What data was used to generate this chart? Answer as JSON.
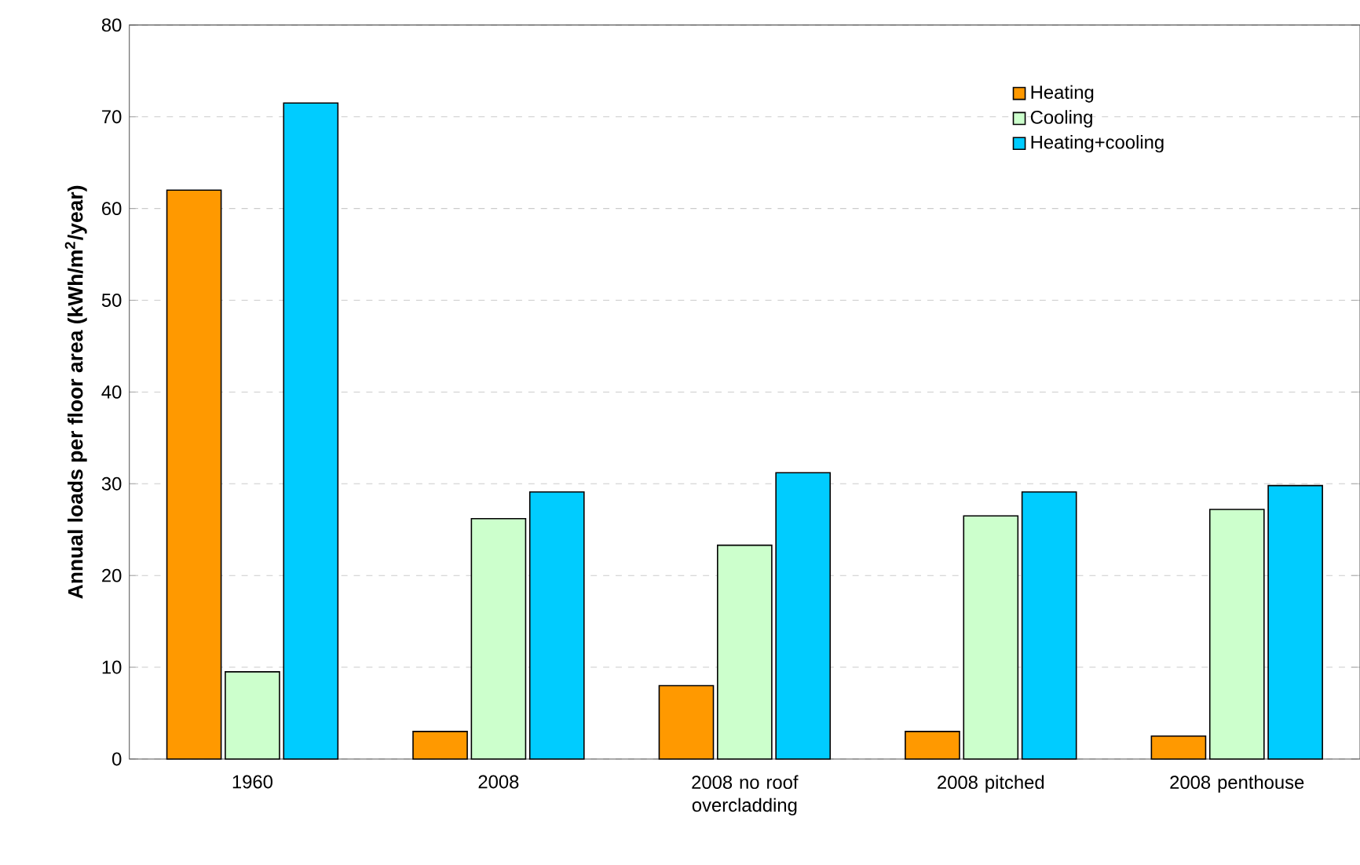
{
  "chart_data": {
    "type": "bar",
    "ylabel": "Annual loads per floor area (kWh/m$^{2}$/year)",
    "categories": [
      "1960",
      "2008",
      "2008 no roof overcladding",
      "2008 pitched",
      "2008 penthouse"
    ],
    "series": [
      {
        "name": "Heating",
        "color": "#ff9900",
        "values": [
          62,
          3,
          8,
          3,
          2.5
        ]
      },
      {
        "name": "Cooling",
        "color": "#ccffcc",
        "values": [
          9.5,
          26.2,
          23.3,
          26.5,
          27.2
        ]
      },
      {
        "name": "Heating+cooling",
        "color": "#00ccff",
        "values": [
          71.5,
          29.1,
          31.2,
          29.1,
          29.8
        ]
      }
    ],
    "ylim": [
      0,
      80
    ],
    "yticks": [
      0,
      10,
      20,
      30,
      40,
      50,
      60,
      70,
      80
    ],
    "grid": "y",
    "legend": "top right"
  }
}
